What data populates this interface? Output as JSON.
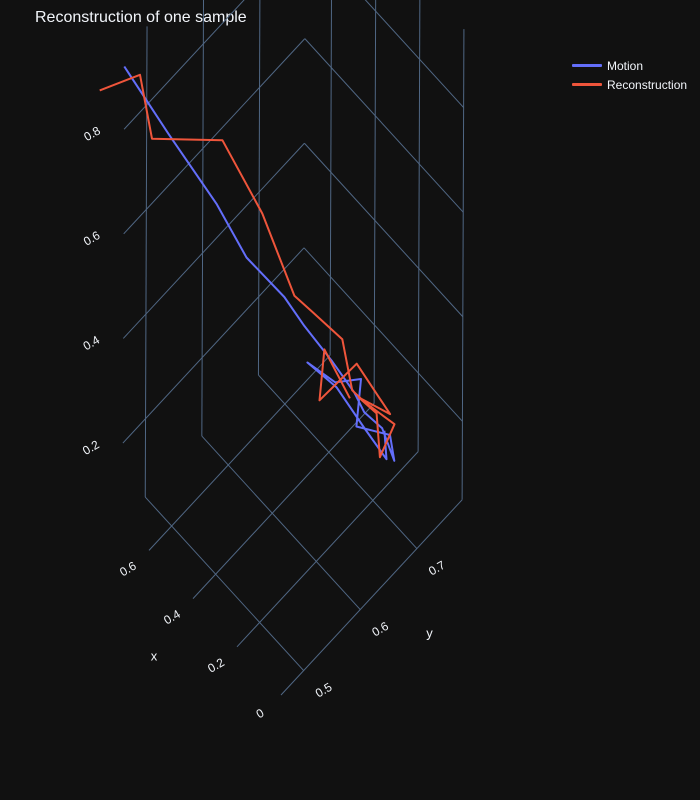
{
  "colors": {
    "background": "#111111",
    "grid": "#506784",
    "text": "#f2f5fa"
  },
  "chart_data": {
    "type": "line3d",
    "title": "Reconstruction of one sample",
    "legend_position": "top-right",
    "axes": {
      "x": {
        "label": "x",
        "ticks": [
          "0",
          "0.2",
          "0.4",
          "0.6"
        ],
        "range": [
          0,
          0.72
        ]
      },
      "y": {
        "label": "y",
        "ticks": [
          "0.5",
          "0.6",
          "0.7"
        ],
        "range": [
          0.46,
          0.78
        ]
      },
      "z": {
        "label": "",
        "ticks": [
          "0.2",
          "0.4",
          "0.6",
          "0.8"
        ],
        "range": [
          0.05,
          0.95
        ]
      }
    },
    "series": [
      {
        "name": "Motion",
        "color": "#636efa",
        "points": [
          [
            0.72,
            0.46,
            0.92
          ],
          [
            0.62,
            0.5,
            0.79
          ],
          [
            0.53,
            0.55,
            0.64
          ],
          [
            0.47,
            0.58,
            0.53
          ],
          [
            0.4,
            0.62,
            0.44
          ],
          [
            0.36,
            0.64,
            0.38
          ],
          [
            0.31,
            0.67,
            0.3
          ],
          [
            0.26,
            0.69,
            0.24
          ],
          [
            0.24,
            0.7,
            0.2
          ],
          [
            0.21,
            0.72,
            0.16
          ],
          [
            0.18,
            0.73,
            0.1
          ],
          [
            0.2,
            0.73,
            0.14
          ],
          [
            0.25,
            0.69,
            0.18
          ],
          [
            0.23,
            0.69,
            0.28
          ],
          [
            0.27,
            0.66,
            0.29
          ],
          [
            0.32,
            0.63,
            0.34
          ],
          [
            0.29,
            0.67,
            0.26
          ],
          [
            0.24,
            0.7,
            0.17
          ],
          [
            0.19,
            0.72,
            0.11
          ],
          [
            0.2,
            0.72,
            0.16
          ]
        ]
      },
      {
        "name": "Reconstruction",
        "color": "#ef553b",
        "points": [
          [
            0.78,
            0.44,
            0.87
          ],
          [
            0.7,
            0.48,
            0.89
          ],
          [
            0.67,
            0.49,
            0.77
          ],
          [
            0.53,
            0.56,
            0.75
          ],
          [
            0.45,
            0.6,
            0.6
          ],
          [
            0.38,
            0.63,
            0.44
          ],
          [
            0.35,
            0.65,
            0.4
          ],
          [
            0.29,
            0.68,
            0.34
          ],
          [
            0.27,
            0.69,
            0.24
          ],
          [
            0.24,
            0.7,
            0.22
          ],
          [
            0.18,
            0.73,
            0.17
          ],
          [
            0.22,
            0.72,
            0.1
          ],
          [
            0.21,
            0.71,
            0.2
          ],
          [
            0.24,
            0.69,
            0.24
          ],
          [
            0.2,
            0.73,
            0.18
          ],
          [
            0.25,
            0.69,
            0.3
          ],
          [
            0.29,
            0.64,
            0.27
          ],
          [
            0.32,
            0.66,
            0.33
          ],
          [
            0.28,
            0.69,
            0.22
          ]
        ]
      }
    ]
  }
}
